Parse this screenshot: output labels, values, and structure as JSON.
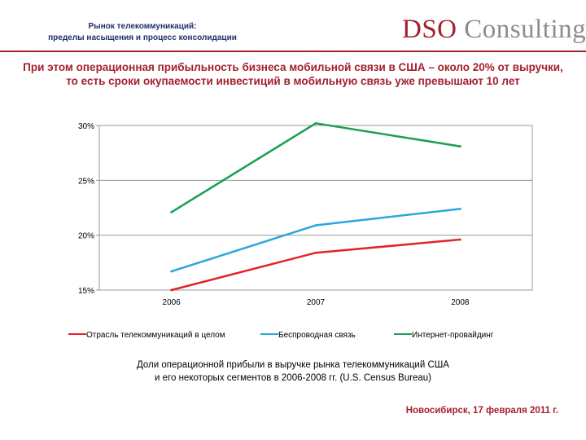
{
  "header": {
    "subtitle_line1": "Рынок телекоммуникаций:",
    "subtitle_line2": "пределы насыщения и процесс консолидации",
    "logo_part1": "DSO",
    "logo_part2": "Consulting"
  },
  "headline": {
    "line1": "При этом операционная прибыльность бизнеса мобильной связи в США – около 20% от выручки,",
    "line2": "то есть сроки окупаемости инвестиций в мобильную связь уже превышают 10 лет"
  },
  "chart_data": {
    "type": "line",
    "categories": [
      "2006",
      "2007",
      "2008"
    ],
    "yticks": [
      "30%",
      "25%",
      "20%",
      "15%"
    ],
    "ytick_values": [
      30,
      25,
      20,
      15
    ],
    "ylim": [
      15,
      30
    ],
    "legend_position": "bottom",
    "series": [
      {
        "name": "Отрасль телекоммуникаций в целом",
        "values": [
          15.0,
          18.4,
          19.6
        ],
        "color": "#e3222a"
      },
      {
        "name": "Беспроводная связь",
        "values": [
          16.7,
          20.9,
          22.4
        ],
        "color": "#2aa7dc"
      },
      {
        "name": "Интернет-провайдинг",
        "values": [
          22.1,
          30.2,
          28.1
        ],
        "color": "#1c9e52"
      }
    ]
  },
  "caption": {
    "line1": "Доли операционной прибыли в выручке рынка телекоммуникаций США",
    "line2": "и его некоторых сегментов в 2006-2008 гг. (U.S. Census Bureau)"
  },
  "footer": {
    "text": "Новосибирск, 17 февраля 2011 г."
  },
  "colors": {
    "accent": "#a4202d",
    "navy": "#1f2f6b",
    "logo_gray": "#8c8c8c"
  }
}
